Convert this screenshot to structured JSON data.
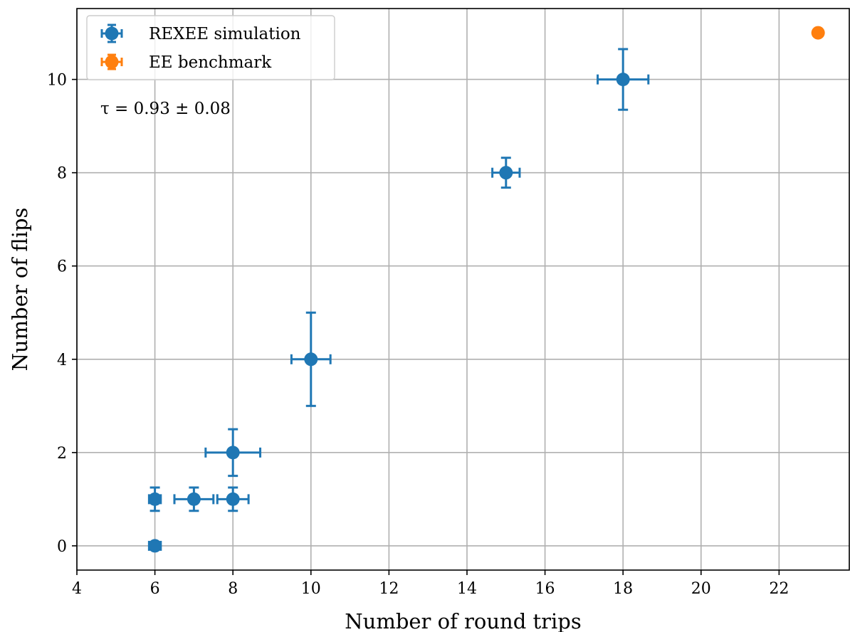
{
  "chart_data": {
    "type": "scatter",
    "title": "",
    "xlabel": "Number of round trips",
    "ylabel": "Number of flips",
    "xlim": [
      4,
      23.8
    ],
    "ylim": [
      -0.52,
      11.52
    ],
    "xticks": [
      4,
      6,
      8,
      10,
      12,
      14,
      16,
      18,
      20,
      22
    ],
    "yticks": [
      0,
      2,
      4,
      6,
      8,
      10
    ],
    "grid": true,
    "legend_position": "top-left",
    "annotation": "τ = 0.93 ± 0.08",
    "series": [
      {
        "name": "REXEE simulation",
        "color": "#1f77b4",
        "points": [
          {
            "x": 6,
            "y": 0,
            "xerr": 0.15,
            "yerr": 0.05
          },
          {
            "x": 6,
            "y": 1,
            "xerr": 0.15,
            "yerr": 0.25
          },
          {
            "x": 7,
            "y": 1,
            "xerr": 0.5,
            "yerr": 0.25
          },
          {
            "x": 8,
            "y": 1,
            "xerr": 0.4,
            "yerr": 0.25
          },
          {
            "x": 8,
            "y": 2,
            "xerr": 0.7,
            "yerr": 0.5
          },
          {
            "x": 10,
            "y": 4,
            "xerr": 0.5,
            "yerr": 1.0
          },
          {
            "x": 15,
            "y": 8,
            "xerr": 0.35,
            "yerr": 0.32
          },
          {
            "x": 18,
            "y": 10,
            "xerr": 0.65,
            "yerr": 0.65
          }
        ]
      },
      {
        "name": "EE benchmark",
        "color": "#ff7f0e",
        "points": [
          {
            "x": 23,
            "y": 11,
            "xerr": 0,
            "yerr": 0
          }
        ]
      }
    ]
  }
}
